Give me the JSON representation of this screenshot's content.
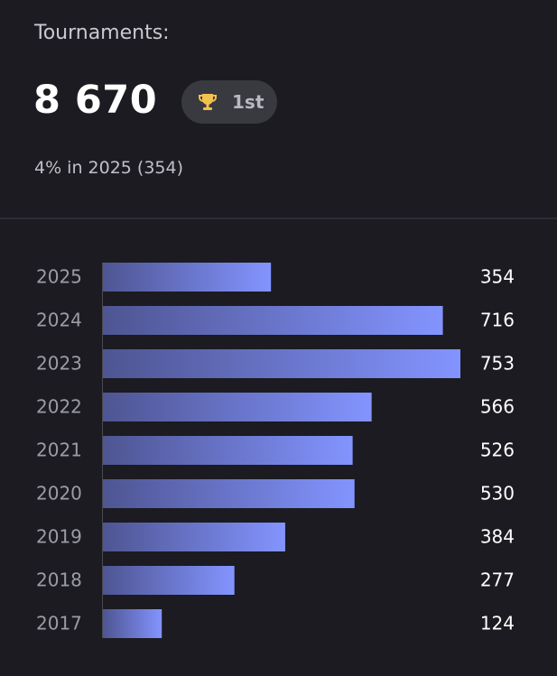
{
  "header": {
    "title": "Tournaments:",
    "total": "8 670",
    "badge": "1st",
    "subtitle": "4% in 2025 (354)"
  },
  "chart_data": {
    "type": "bar",
    "orientation": "horizontal",
    "categories": [
      "2025",
      "2024",
      "2023",
      "2022",
      "2021",
      "2020",
      "2019",
      "2018",
      "2017"
    ],
    "values": [
      354,
      716,
      753,
      566,
      526,
      530,
      384,
      277,
      124
    ],
    "color": "#8394ff"
  }
}
